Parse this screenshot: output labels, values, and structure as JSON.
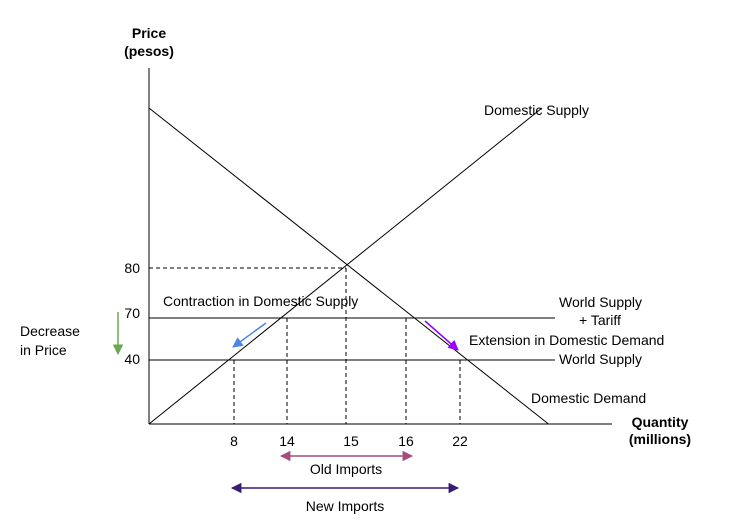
{
  "chart_data": {
    "type": "line",
    "title": "",
    "ylabel": [
      "Price",
      "(pesos)"
    ],
    "xlabel": [
      "Quantity",
      "(millions)"
    ],
    "xlim": [
      0,
      28
    ],
    "ylim": [
      0,
      140
    ],
    "x_ticks": [
      8,
      14,
      15,
      16,
      22
    ],
    "y_ticks": [
      40,
      70,
      80
    ],
    "lines": [
      {
        "key": "domestic_supply",
        "name": "Domestic Supply",
        "from": [
          0,
          0
        ],
        "to": [
          26,
          138
        ]
      },
      {
        "key": "domestic_demand",
        "name": "Domestic Demand",
        "from": [
          0,
          138
        ],
        "to": [
          26.5,
          0
        ]
      },
      {
        "key": "world_supply_tariff",
        "name": [
          "World Supply",
          "+ Tariff"
        ],
        "y": 70,
        "x_range": [
          0,
          27
        ]
      },
      {
        "key": "world_supply",
        "name": "World Supply",
        "y": 40,
        "x_range": [
          0,
          27
        ]
      }
    ],
    "reference_lines": [
      {
        "x": 15,
        "y": 80
      },
      {
        "x": 14,
        "y": 70
      },
      {
        "x": 16,
        "y": 70
      },
      {
        "x": 8,
        "y": 40
      },
      {
        "x": 22,
        "y": 40
      }
    ],
    "annotations": {
      "contraction": {
        "text": "Contraction in Domestic Supply",
        "color": "#4a86e8"
      },
      "extension": {
        "text": "Extension in Domestic Demand",
        "color": "#9900ff"
      },
      "decrease": {
        "text": [
          "Decrease",
          "in Price"
        ],
        "color": "#6aa84f"
      },
      "old_imports": {
        "text": "Old Imports",
        "x_range": [
          14,
          16
        ],
        "color": "#a64d79"
      },
      "new_imports": {
        "text": "New Imports",
        "x_range": [
          8,
          22
        ],
        "color": "#351c75"
      }
    }
  }
}
